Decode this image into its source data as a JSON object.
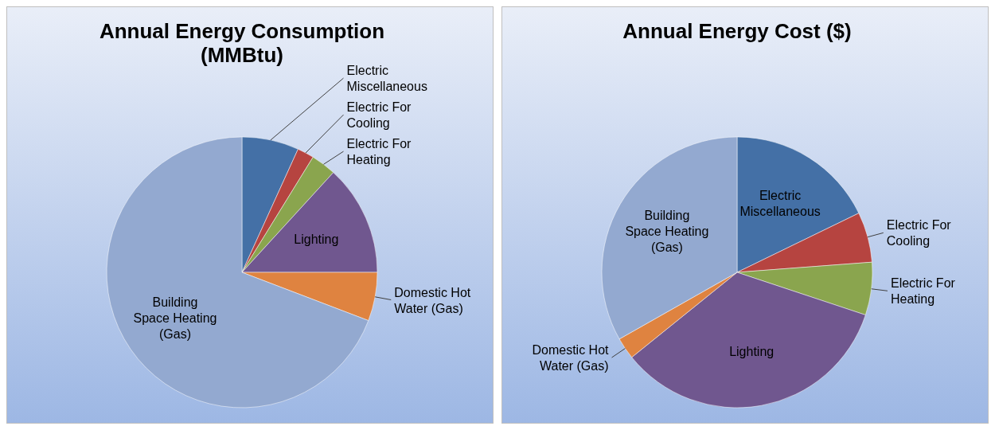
{
  "chart_data": [
    {
      "type": "pie",
      "title": "Annual Energy Consumption (MMBtu)",
      "categories": [
        "Electric Miscellaneous",
        "Electric For Cooling",
        "Electric For Heating",
        "Lighting",
        "Domestic Hot Water (Gas)",
        "Building Space Heating (Gas)"
      ],
      "values": [
        6.8,
        2,
        3,
        13.2,
        5.8,
        69.2
      ],
      "colors": [
        "#4470a6",
        "#b64440",
        "#8aa54e",
        "#70578f",
        "#df8340",
        "#93a9d0"
      ]
    },
    {
      "type": "pie",
      "title": "Annual Energy Cost ($)",
      "categories": [
        "Electric Miscellaneous",
        "Electric For Cooling",
        "Electric For Heating",
        "Lighting",
        "Domestic Hot Water (Gas)",
        "Building Space Heating (Gas)"
      ],
      "values": [
        17.8,
        6,
        6.3,
        34.1,
        2.6,
        33.2
      ],
      "colors": [
        "#4470a6",
        "#b64440",
        "#8aa54e",
        "#70578f",
        "#df8340",
        "#93a9d0"
      ]
    }
  ]
}
